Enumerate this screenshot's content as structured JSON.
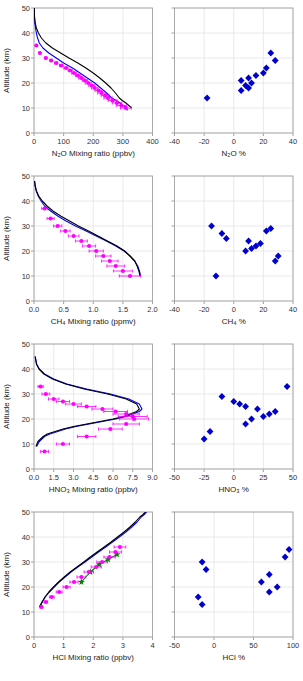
{
  "chart_data": [
    {
      "type": "line",
      "xlabel": "N₂O Mixing ratio (ppbv)",
      "ylabel": "Altitude (km)",
      "xlim": [
        0,
        400
      ],
      "xticks": [
        0,
        100,
        200,
        300,
        400
      ],
      "ylim": [
        0,
        50
      ],
      "yticks": [
        0,
        10,
        20,
        30,
        40,
        50
      ],
      "grid": true,
      "series": [
        {
          "type": "line",
          "color": "#0000FF",
          "x": [
            1,
            1,
            2,
            3,
            5,
            8,
            12,
            18,
            30,
            50,
            75,
            100,
            130,
            155,
            180,
            205,
            225,
            245,
            262,
            278,
            290,
            300,
            308,
            312,
            315
          ],
          "values": [
            50,
            48,
            46,
            44,
            42,
            40,
            38,
            36,
            34,
            32,
            30,
            28,
            26,
            24,
            22,
            20,
            18,
            16,
            14,
            13,
            12,
            11,
            10.5,
            10,
            9
          ]
        },
        {
          "type": "line",
          "color": "#000000",
          "x": [
            1,
            1,
            2,
            4,
            8,
            15,
            25,
            40,
            62,
            90,
            118,
            148,
            175,
            200,
            222,
            242,
            260,
            275,
            288,
            298,
            310,
            320,
            325,
            330
          ],
          "values": [
            50,
            48,
            46,
            44,
            42,
            40,
            38,
            36,
            34,
            32,
            30,
            28,
            26,
            24,
            22,
            20,
            18,
            16,
            14,
            13,
            12,
            11,
            10.5,
            10
          ]
        },
        {
          "type": "scatter",
          "color": "#FF00FF",
          "marker": "circle",
          "x": [
            310,
            295,
            280,
            265,
            250,
            240,
            228,
            218,
            205,
            195,
            183,
            172,
            160,
            148,
            135,
            122,
            108,
            92,
            75,
            58,
            40,
            20,
            8
          ],
          "values": [
            10,
            11,
            12,
            13,
            14,
            15,
            16,
            17,
            18,
            19,
            20,
            21,
            22,
            23,
            24,
            25,
            26,
            27,
            28,
            29,
            30,
            32,
            35
          ],
          "xerr": [
            18,
            17,
            16,
            15,
            14,
            13,
            13,
            12,
            11,
            10,
            10,
            9,
            9,
            8,
            8,
            7,
            7,
            6,
            5,
            4,
            3,
            2,
            1
          ]
        }
      ]
    },
    {
      "type": "scatter",
      "xlabel": "N₂O %",
      "xlim": [
        -40,
        40
      ],
      "xticks": [
        -40,
        -20,
        0,
        20,
        40
      ],
      "ylim": [
        0,
        50
      ],
      "yticks": [
        0,
        10,
        20,
        30,
        40,
        50
      ],
      "grid": true,
      "tick_labels": "x",
      "series": [
        {
          "type": "scatter",
          "color": "#0000CD",
          "marker": "diamond",
          "x": [
            -18,
            25,
            5,
            10,
            8,
            12,
            5,
            10,
            15,
            20,
            22,
            28
          ],
          "values": [
            14,
            32,
            17,
            18,
            19,
            20,
            21,
            22,
            23,
            24,
            26,
            29
          ]
        }
      ]
    },
    {
      "type": "line",
      "xlabel": "CH₄ Mixing ratio (ppmv)",
      "ylabel": "Altitude (km)",
      "xlim": [
        0,
        2
      ],
      "xticks": [
        {
          "value": 0,
          "label": "0.0"
        },
        0.5,
        {
          "value": 1,
          "label": "1.0"
        },
        1.5,
        {
          "value": 2,
          "label": "2.0"
        }
      ],
      "ylim": [
        0,
        50
      ],
      "yticks": [
        0,
        10,
        20,
        30,
        40,
        50
      ],
      "grid": true,
      "series": [
        {
          "type": "line",
          "color": "#0000FF",
          "x": [
            0.01,
            0.02,
            0.04,
            0.07,
            0.12,
            0.18,
            0.28,
            0.4,
            0.54,
            0.7,
            0.88,
            1.05,
            1.22,
            1.38,
            1.52,
            1.62,
            1.7,
            1.75,
            1.78,
            1.8
          ],
          "values": [
            48,
            46,
            44,
            42,
            40,
            38,
            36,
            34,
            32,
            30,
            28,
            26,
            24,
            22,
            20,
            18,
            16,
            14,
            12,
            10
          ]
        },
        {
          "type": "line",
          "color": "#000000",
          "x": [
            0.01,
            0.02,
            0.04,
            0.08,
            0.14,
            0.22,
            0.32,
            0.45,
            0.6,
            0.75,
            0.92,
            1.08,
            1.24,
            1.4,
            1.53,
            1.62,
            1.7,
            1.74,
            1.77,
            1.79
          ],
          "values": [
            48,
            46,
            44,
            42,
            40,
            38,
            36,
            34,
            32,
            30,
            28,
            26,
            24,
            22,
            20,
            18,
            16,
            14,
            12,
            10
          ]
        },
        {
          "type": "scatter",
          "color": "#FF00FF",
          "marker": "circle",
          "x": [
            1.62,
            1.5,
            1.38,
            1.28,
            1.17,
            1.05,
            0.93,
            0.8,
            0.67,
            0.53,
            0.4,
            0.28,
            0.18
          ],
          "values": [
            10,
            12,
            14,
            16,
            18,
            20,
            22,
            24,
            26,
            28,
            30,
            33,
            37
          ],
          "xerr": [
            0.18,
            0.16,
            0.15,
            0.14,
            0.13,
            0.12,
            0.11,
            0.1,
            0.09,
            0.08,
            0.07,
            0.06,
            0.05
          ]
        }
      ]
    },
    {
      "type": "scatter",
      "xlabel": "CH₄ %",
      "xlim": [
        -40,
        40
      ],
      "xticks": [
        -40,
        -20,
        0,
        20,
        40
      ],
      "ylim": [
        0,
        50
      ],
      "yticks": [
        0,
        10,
        20,
        30,
        40,
        50
      ],
      "grid": true,
      "tick_labels": "x",
      "series": [
        {
          "type": "scatter",
          "color": "#0000CD",
          "marker": "diamond",
          "x": [
            -12,
            28,
            30,
            8,
            12,
            15,
            18,
            10,
            -5,
            -8,
            -15,
            22,
            25
          ],
          "values": [
            10,
            16,
            18,
            20,
            21,
            22,
            23,
            24,
            25,
            27,
            30,
            28,
            29
          ]
        }
      ]
    },
    {
      "type": "line",
      "xlabel": "HNO₃ Mixing ratio (ppbv)",
      "ylabel": "Altitude (km)",
      "xlim": [
        0,
        9
      ],
      "xticks": [
        {
          "value": 0,
          "label": "0.0"
        },
        1.5,
        {
          "value": 3,
          "label": "3.0"
        },
        4.5,
        {
          "value": 6,
          "label": "6.0"
        },
        7.5,
        {
          "value": 9,
          "label": "9.0"
        }
      ],
      "ylim": [
        0,
        50
      ],
      "yticks": [
        0,
        10,
        20,
        30,
        40,
        50
      ],
      "grid": true,
      "series": [
        {
          "type": "line",
          "color": "#0000FF",
          "x": [
            0.1,
            0.2,
            0.4,
            0.8,
            1.5,
            2.5,
            4.0,
            5.8,
            7.2,
            8.0,
            8.2,
            8.0,
            7.5,
            7.0,
            6.2,
            5.2,
            4.2,
            3.2,
            2.4,
            1.8,
            1.2,
            0.8,
            0.4,
            0.2
          ],
          "values": [
            45,
            42,
            40,
            38,
            36,
            34,
            32,
            30,
            28,
            26,
            24,
            23,
            22,
            21,
            20,
            19,
            18,
            17,
            16,
            15,
            14,
            13,
            11,
            9
          ]
        },
        {
          "type": "line",
          "color": "#000000",
          "x": [
            0.08,
            0.18,
            0.38,
            0.75,
            1.4,
            2.4,
            3.8,
            5.6,
            7.0,
            7.8,
            8.0,
            7.8,
            7.3,
            6.8,
            6.0,
            5.0,
            4.0,
            3.0,
            2.2,
            1.6,
            1.0,
            0.7,
            0.3,
            0.15
          ],
          "values": [
            45,
            42,
            40,
            38,
            36,
            34,
            32,
            30,
            28,
            26,
            24,
            23,
            22,
            21,
            20,
            19,
            18,
            17,
            16,
            15,
            14,
            13,
            11,
            9
          ]
        },
        {
          "type": "scatter",
          "color": "#FF00FF",
          "marker": "circle",
          "x": [
            0.8,
            2.2,
            4.0,
            5.8,
            7.0,
            7.6,
            7.5,
            7.0,
            6.2,
            5.2,
            4.0,
            3.0,
            2.2,
            1.5,
            0.9,
            0.5
          ],
          "values": [
            7,
            10,
            13,
            16,
            18,
            20,
            21,
            22,
            23,
            24,
            25,
            26,
            27,
            28,
            30,
            33
          ],
          "xerr": [
            0.3,
            0.5,
            0.7,
            0.9,
            1.0,
            1.1,
            1.1,
            1.0,
            0.9,
            0.8,
            0.7,
            0.6,
            0.5,
            0.4,
            0.3,
            0.2
          ]
        }
      ]
    },
    {
      "type": "scatter",
      "xlabel": "HNO₃ %",
      "xlim": [
        -50,
        50
      ],
      "xticks": [
        -50,
        -25,
        0,
        25,
        50
      ],
      "ylim": [
        0,
        50
      ],
      "yticks": [
        0,
        10,
        20,
        30,
        40,
        50
      ],
      "grid": true,
      "tick_labels": "x",
      "series": [
        {
          "type": "scatter",
          "color": "#0000CD",
          "marker": "diamond",
          "x": [
            -25,
            -20,
            10,
            15,
            25,
            30,
            35,
            20,
            10,
            5,
            0,
            -10,
            45
          ],
          "values": [
            12,
            15,
            18,
            20,
            21,
            22,
            23,
            24,
            25,
            26,
            27,
            29,
            33
          ]
        }
      ]
    },
    {
      "type": "line",
      "xlabel": "HCl Mixing ratio (ppbv)",
      "ylabel": "Altitude (km)",
      "xlim": [
        0,
        4
      ],
      "xticks": [
        0,
        1,
        2,
        3,
        4
      ],
      "ylim": [
        0,
        50
      ],
      "yticks": [
        0,
        10,
        20,
        30,
        40,
        50
      ],
      "grid": true,
      "series": [
        {
          "type": "line",
          "color": "#0000FF",
          "x": [
            0.2,
            0.28,
            0.38,
            0.52,
            0.68,
            0.85,
            1.05,
            1.25,
            1.48,
            1.72,
            1.95,
            2.18,
            2.42,
            2.65,
            2.88,
            3.1,
            3.3,
            3.48,
            3.62,
            3.72,
            3.8
          ],
          "values": [
            12,
            14,
            16,
            18,
            20,
            22,
            24,
            26,
            28,
            30,
            32,
            34,
            36,
            38,
            40,
            42,
            44,
            46,
            48,
            49,
            50
          ]
        },
        {
          "type": "line",
          "color": "#000000",
          "x": [
            0.18,
            0.27,
            0.37,
            0.5,
            0.66,
            0.83,
            1.02,
            1.22,
            1.45,
            1.68,
            1.9,
            2.13,
            2.37,
            2.6,
            2.82,
            3.04,
            3.24,
            3.42,
            3.57,
            3.68,
            3.76
          ],
          "values": [
            12,
            14,
            16,
            18,
            20,
            22,
            24,
            26,
            28,
            30,
            32,
            34,
            36,
            38,
            40,
            42,
            44,
            46,
            48,
            49,
            50
          ]
        },
        {
          "type": "line",
          "color": "#008000",
          "marker": "star",
          "x": [
            1.6,
            1.9,
            2.2,
            2.5,
            2.8
          ],
          "values": [
            22,
            26,
            29,
            31,
            33
          ]
        },
        {
          "type": "scatter",
          "color": "#FF00FF",
          "marker": "circle",
          "x": [
            0.25,
            0.4,
            0.6,
            0.85,
            1.1,
            1.35,
            1.6,
            1.85,
            2.1,
            2.3,
            2.55,
            2.75,
            2.9
          ],
          "values": [
            12,
            14,
            16,
            18,
            20,
            22,
            24,
            26,
            28,
            30,
            32,
            34,
            36
          ],
          "xerr": [
            0.05,
            0.06,
            0.08,
            0.1,
            0.12,
            0.14,
            0.15,
            0.16,
            0.17,
            0.18,
            0.19,
            0.2,
            0.2
          ]
        }
      ]
    },
    {
      "type": "scatter",
      "xlabel": "HCl %",
      "xlim": [
        -50,
        100
      ],
      "xticks": [
        -50,
        0,
        50,
        100
      ],
      "ylim": [
        0,
        50
      ],
      "yticks": [
        0,
        10,
        20,
        30,
        40,
        50
      ],
      "grid": true,
      "tick_labels": "x",
      "series": [
        {
          "type": "scatter",
          "color": "#0000CD",
          "marker": "diamond",
          "x": [
            -15,
            -20,
            70,
            80,
            60,
            70,
            -10,
            -15,
            90,
            95
          ],
          "values": [
            13,
            16,
            18,
            20,
            22,
            25,
            27,
            30,
            32,
            35
          ]
        }
      ]
    }
  ]
}
